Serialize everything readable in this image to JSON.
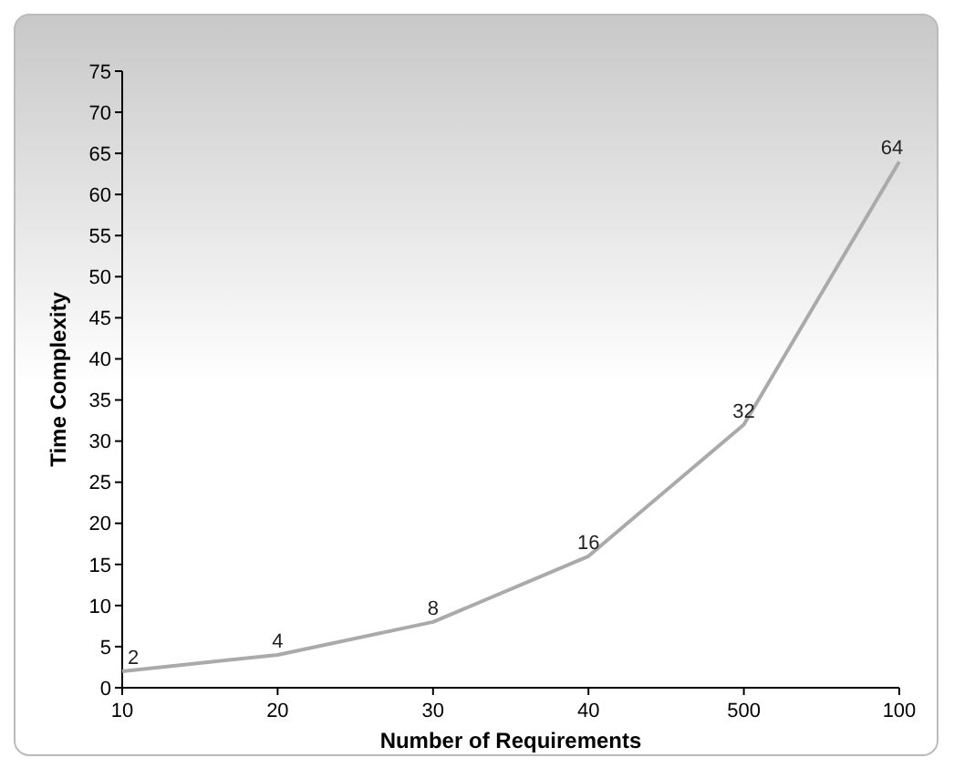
{
  "chart_data": {
    "type": "line",
    "xlabel": "Number of Requirements",
    "ylabel": "Time Complexity",
    "categories": [
      "10",
      "20",
      "30",
      "40",
      "500",
      "100"
    ],
    "series": [
      {
        "color": "#aaaaaa",
        "values": [
          2,
          4,
          8,
          16,
          32,
          64
        ]
      }
    ],
    "ylim": [
      0,
      75
    ],
    "yticks": [
      0,
      5,
      10,
      15,
      20,
      25,
      30,
      35,
      40,
      45,
      50,
      55,
      60,
      65,
      70,
      75
    ],
    "data_labels": true
  }
}
